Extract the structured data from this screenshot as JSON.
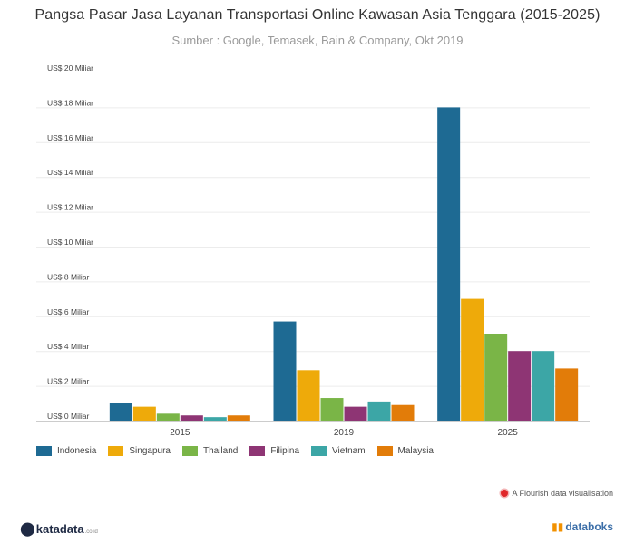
{
  "header": {
    "title": "Pangsa Pasar Jasa Layanan Transportasi Online Kawasan Asia Tenggara (2015-2025)",
    "subtitle": "Sumber : Google, Temasek, Bain & Company, Okt 2019"
  },
  "chart_data": {
    "type": "bar",
    "title": "Pangsa Pasar Jasa Layanan Transportasi Online Kawasan Asia Tenggara (2015-2025)",
    "subtitle": "Sumber : Google, Temasek, Bain & Company, Okt 2019",
    "categories": [
      "2015",
      "2019",
      "2025"
    ],
    "series": [
      {
        "name": "Indonesia",
        "color": "#1e6a93",
        "values": [
          1.0,
          5.7,
          18.0
        ]
      },
      {
        "name": "Singapura",
        "color": "#eeaa0a",
        "values": [
          0.8,
          2.9,
          7.0
        ]
      },
      {
        "name": "Thailand",
        "color": "#7ab547",
        "values": [
          0.4,
          1.3,
          5.0
        ]
      },
      {
        "name": "Filipina",
        "color": "#8e3574",
        "values": [
          0.3,
          0.8,
          4.0
        ]
      },
      {
        "name": "Vietnam",
        "color": "#3ca6a6",
        "values": [
          0.2,
          1.1,
          4.0
        ]
      },
      {
        "name": "Malaysia",
        "color": "#e27c09",
        "values": [
          0.3,
          0.9,
          3.0
        ]
      }
    ],
    "ylim": [
      0,
      20
    ],
    "yticks": [
      {
        "value": 0,
        "label": "US$ 0 Miliar"
      },
      {
        "value": 2,
        "label": "US$ 2 Miliar"
      },
      {
        "value": 4,
        "label": "US$ 4 Miliar"
      },
      {
        "value": 6,
        "label": "US$ 6 Miliar"
      },
      {
        "value": 8,
        "label": "US$ 8 Miliar"
      },
      {
        "value": 10,
        "label": "US$ 10 Miliar"
      },
      {
        "value": 12,
        "label": "US$ 12 Miliar"
      },
      {
        "value": 14,
        "label": "US$ 14 Miliar"
      },
      {
        "value": 16,
        "label": "US$ 16 Miliar"
      },
      {
        "value": 18,
        "label": "US$ 18 Miliar"
      },
      {
        "value": 20,
        "label": "US$ 20 Miliar"
      }
    ],
    "grid": true,
    "legend": "bottom-left"
  },
  "footer": {
    "credit": "A Flourish data visualisation",
    "logo_left": "katadata",
    "logo_left_domain": ".co.id",
    "logo_right": "databoks"
  }
}
